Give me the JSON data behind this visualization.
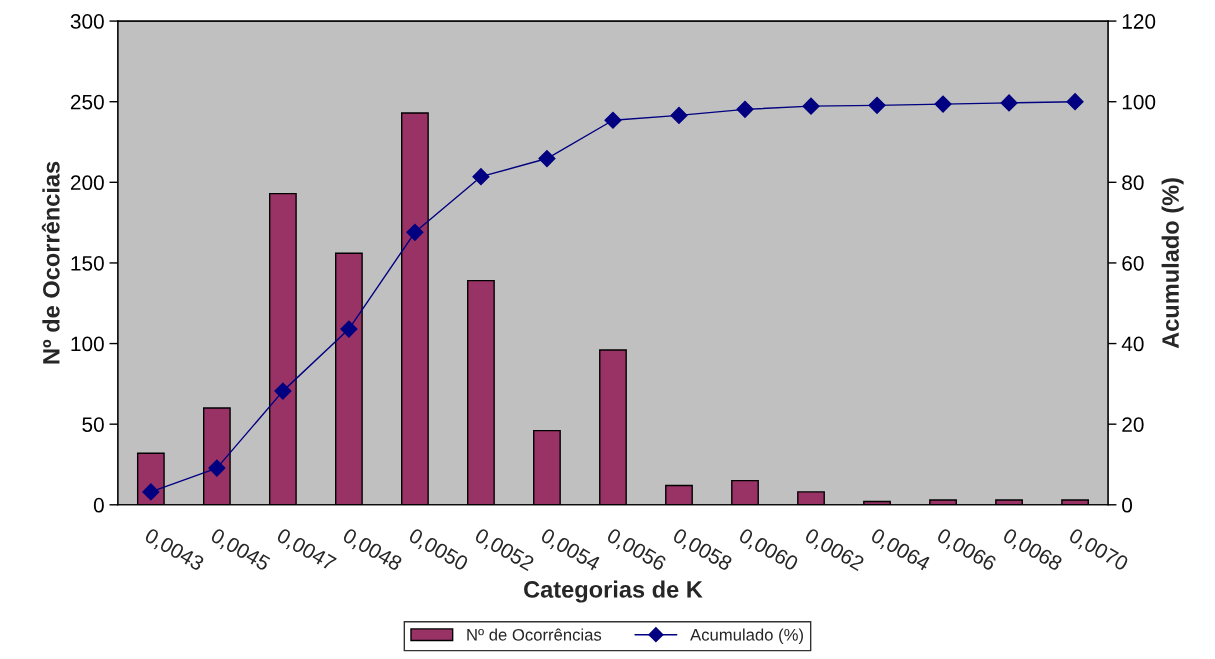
{
  "chart_data": {
    "type": "bar",
    "xlabel": "Categorias de K",
    "ylabel": "Nº de Ocorrências",
    "y2label": "Acumulado (%)",
    "categories": [
      "0,0043",
      "0,0045",
      "0,0047",
      "0,0048",
      "0,0050",
      "0,0052",
      "0,0054",
      "0,0056",
      "0,0058",
      "0,0060",
      "0,0062",
      "0,0064",
      "0,0066",
      "0,0068",
      "0,0070"
    ],
    "series": [
      {
        "name": "Nº de Ocorrências",
        "color": "#993366",
        "values": [
          32,
          60,
          193,
          156,
          243,
          139,
          46,
          96,
          12,
          15,
          8,
          2,
          3,
          3,
          3
        ]
      },
      {
        "name": "Acumulado (%)",
        "type": "line",
        "axis": "y2",
        "color": "#000080",
        "marker": "diamond",
        "values": [
          3.2,
          9.1,
          28.2,
          43.6,
          67.6,
          81.4,
          85.9,
          95.4,
          96.6,
          98.1,
          98.9,
          99.1,
          99.4,
          99.7,
          100
        ]
      }
    ],
    "ylim": [
      0,
      300
    ],
    "yticks": [
      0,
      50,
      100,
      150,
      200,
      250,
      300
    ],
    "y2lim": [
      0,
      120
    ],
    "y2ticks": [
      0,
      20,
      40,
      60,
      80,
      100,
      120
    ],
    "grid": false,
    "legend": "bottom"
  }
}
